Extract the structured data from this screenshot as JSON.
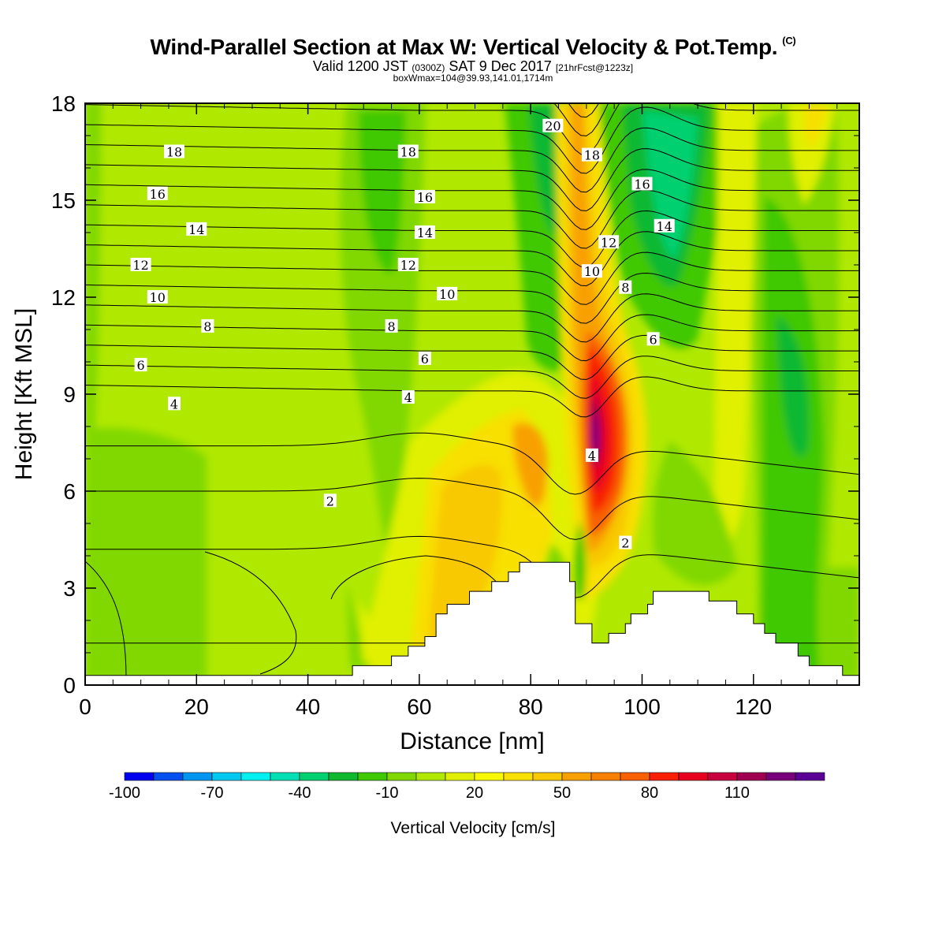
{
  "title": {
    "main": "Wind-Parallel Section at Max W: Vertical Velocity & Pot.Temp.",
    "copyright": "(C)",
    "valid_prefix": "Valid 1200 JST",
    "valid_z": "(0300Z)",
    "valid_date": "SAT 9 Dec 2017",
    "fcst": "[21hrFcst@1223z]",
    "box": "boxWmax=104@39.93,141.01,1714m"
  },
  "chart_data": {
    "type": "contour",
    "xlabel": "Distance [nm]",
    "ylabel": "Height [Kft MSL]",
    "xlim": [
      0,
      139
    ],
    "ylim": [
      0,
      18
    ],
    "x_ticks": [
      "0",
      "20",
      "40",
      "60",
      "80",
      "100",
      "120"
    ],
    "y_ticks": [
      "0",
      "3",
      "6",
      "9",
      "12",
      "15",
      "18"
    ],
    "colorbar": {
      "label": "Vertical Velocity [cm/s]",
      "tick_labels": [
        "-100",
        "-70",
        "-40",
        "-10",
        "20",
        "50",
        "80",
        "110"
      ],
      "colors": [
        "#0000f0",
        "#0050f0",
        "#0096f0",
        "#00c8f0",
        "#00f0f0",
        "#00e0b4",
        "#00d070",
        "#10b830",
        "#40c800",
        "#80d800",
        "#b0e800",
        "#e0f000",
        "#f8f800",
        "#f8e000",
        "#f8c800",
        "#f8a000",
        "#f88000",
        "#f86000",
        "#f82000",
        "#e80020",
        "#c80040",
        "#a00050",
        "#780078",
        "#5a0096"
      ]
    },
    "terrain_profile_kft": {
      "x": [
        0,
        48,
        55,
        58,
        61,
        63,
        65,
        69,
        73,
        76,
        78,
        81,
        84,
        87,
        88,
        90,
        91,
        93,
        94,
        97,
        98,
        101,
        102,
        105,
        106,
        108,
        110,
        112,
        114,
        117,
        120,
        122,
        124,
        126,
        128,
        130,
        132,
        134,
        136,
        139
      ],
      "y": [
        0.3,
        0.6,
        0.9,
        1.2,
        1.5,
        2.2,
        2.5,
        2.9,
        3.2,
        3.5,
        3.8,
        3.8,
        3.8,
        3.2,
        1.9,
        1.9,
        1.3,
        1.3,
        1.6,
        1.9,
        2.2,
        2.5,
        2.9,
        2.9,
        2.9,
        2.9,
        2.9,
        2.6,
        2.6,
        2.2,
        1.9,
        1.6,
        1.3,
        1.3,
        0.9,
        0.6,
        0.6,
        0.6,
        0.3,
        0.3
      ]
    },
    "theta_contour_labels": [
      {
        "v": "2",
        "x": 44,
        "y": 5.7
      },
      {
        "v": "2",
        "x": 97,
        "y": 4.4
      },
      {
        "v": "4",
        "x": 16,
        "y": 8.7
      },
      {
        "v": "4",
        "x": 58,
        "y": 8.9
      },
      {
        "v": "4",
        "x": 91,
        "y": 7.1
      },
      {
        "v": "6",
        "x": 10,
        "y": 9.9
      },
      {
        "v": "6",
        "x": 61,
        "y": 10.1
      },
      {
        "v": "6",
        "x": 102,
        "y": 10.7
      },
      {
        "v": "8",
        "x": 22,
        "y": 11.1
      },
      {
        "v": "8",
        "x": 55,
        "y": 11.1
      },
      {
        "v": "8",
        "x": 97,
        "y": 12.3
      },
      {
        "v": "10",
        "x": 13,
        "y": 12.0
      },
      {
        "v": "10",
        "x": 65,
        "y": 12.1
      },
      {
        "v": "10",
        "x": 91,
        "y": 12.8
      },
      {
        "v": "12",
        "x": 10,
        "y": 13.0
      },
      {
        "v": "12",
        "x": 58,
        "y": 13.0
      },
      {
        "v": "12",
        "x": 94,
        "y": 13.7
      },
      {
        "v": "14",
        "x": 20,
        "y": 14.1
      },
      {
        "v": "14",
        "x": 61,
        "y": 14.0
      },
      {
        "v": "14",
        "x": 104,
        "y": 14.2
      },
      {
        "v": "16",
        "x": 13,
        "y": 15.2
      },
      {
        "v": "16",
        "x": 61,
        "y": 15.1
      },
      {
        "v": "16",
        "x": 100,
        "y": 15.5
      },
      {
        "v": "18",
        "x": 16,
        "y": 16.5
      },
      {
        "v": "18",
        "x": 58,
        "y": 16.5
      },
      {
        "v": "18",
        "x": 91,
        "y": 16.4
      },
      {
        "v": "20",
        "x": 84,
        "y": 17.3
      }
    ]
  }
}
